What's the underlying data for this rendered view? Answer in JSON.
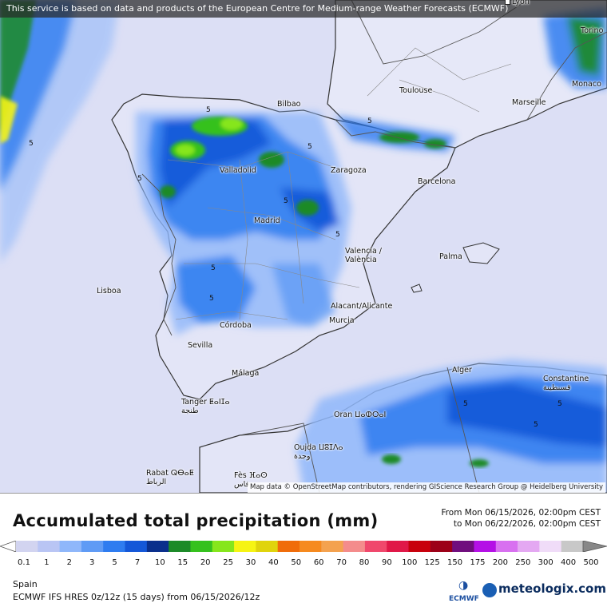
{
  "notice": "This service is based on data and products of the European Centre for Medium-range Weather Forecasts (ECMWF)",
  "attribution": "Map data © OpenStreetMap contributors, rendering GIScience Research Group @ Heidelberg University",
  "cities": {
    "lyon": "Lyon",
    "torino": "Torino",
    "monaco": "Monaco",
    "toulouse": "Toulouse",
    "marseille": "Marseille",
    "bilbao": "Bilbao",
    "valladolid": "Valladolid",
    "zaragoza": "Zaragoza",
    "barcelona": "Barcelona",
    "madrid": "Madrid",
    "valencia": "Valencia /\nValència",
    "palma": "Palma",
    "lisboa": "Lisboa",
    "alacant": "Alacant/Alicante",
    "murcia": "Murcia",
    "cordoba": "Córdoba",
    "sevilla": "Sevilla",
    "malaga": "Málaga",
    "alger": "Alger",
    "constantine": "Constantine\nقسنطينة",
    "tanger": "Tanger ⵟⴰⵏⵊⴰ\nطنجة",
    "oran": "Oran ⵡⴰⵀⵔⴰⵏ",
    "oujda": "Oujda ⵡⵓⵊⴷⴰ\nوجدة",
    "rabat": "Rabat ⵕⴱⴰⵟ\nالرباط",
    "fes": "Fès ⴼⴰⵙ\nفاس"
  },
  "contour_label": "5",
  "legend": {
    "title": "Accumulated total precipitation (mm)",
    "period_from": "From Mon 06/15/2026, 02:00pm CEST",
    "period_to": "to Mon 06/22/2026, 02:00pm CEST",
    "bins": [
      "0.1",
      "1",
      "2",
      "3",
      "5",
      "7",
      "10",
      "15",
      "20",
      "25",
      "30",
      "40",
      "50",
      "60",
      "70",
      "80",
      "90",
      "100",
      "125",
      "150",
      "175",
      "200",
      "250",
      "300",
      "400",
      "500"
    ],
    "colors": [
      "#d2d4f0",
      "#b9c5f4",
      "#8fb7fa",
      "#5f9bf5",
      "#2e7cf0",
      "#1457d8",
      "#0a2f8c",
      "#1c8a28",
      "#35c11d",
      "#86e61c",
      "#f6f413",
      "#e0d40c",
      "#f06c0a",
      "#f68a1e",
      "#f4a24f",
      "#f48c8c",
      "#f0486c",
      "#e01848",
      "#c8000c",
      "#9c0018",
      "#700e7e",
      "#b410e6",
      "#d870f0",
      "#e4a8f2",
      "#f0dcf8",
      "#c8c8c8"
    ],
    "region": "Spain",
    "model": "ECMWF IFS HRES 0z/12z (15 days) from  06/15/2026/12z"
  },
  "logos": {
    "ecmwf": "ECMWF",
    "meteologix": "meteologix.com"
  }
}
